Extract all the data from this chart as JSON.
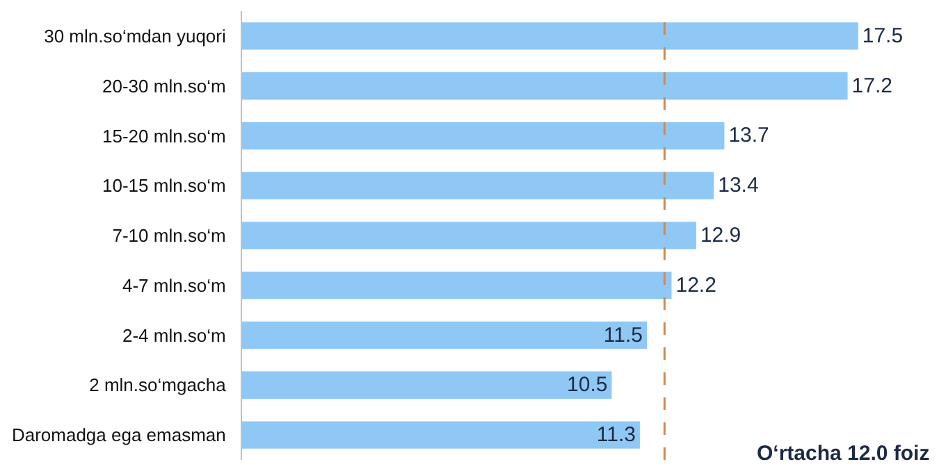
{
  "chart_data": {
    "type": "bar",
    "orientation": "horizontal",
    "categories": [
      "30 mln.so‘mdan yuqori",
      "20-30 mln.so‘m",
      "15-20 mln.so‘m",
      "10-15 mln.so‘m",
      "7-10 mln.so‘m",
      "4-7 mln.so‘m",
      "2-4 mln.so‘m",
      "2 mln.so‘mgacha",
      "Daromadga ega emasman"
    ],
    "values": [
      17.5,
      17.2,
      13.7,
      13.4,
      12.9,
      12.2,
      11.5,
      10.5,
      11.3
    ],
    "color": "#90c8f5",
    "data_labels": true,
    "ref_lines": [
      {
        "axis": "x",
        "value": 12.0,
        "color": "#d4894a",
        "line_style": "dashed"
      }
    ],
    "annotations": [
      "O‘rtacha 12.0 foiz"
    ]
  }
}
